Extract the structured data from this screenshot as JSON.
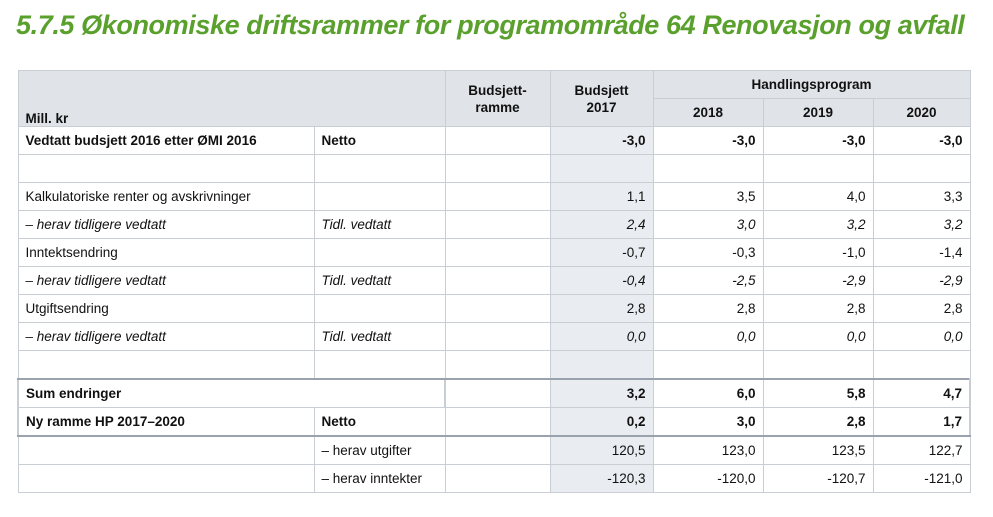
{
  "title": "5.7.5 Økonomiske driftsrammer for programområde 64 Renovasjon og avfall",
  "header": {
    "mill_kr": "Mill. kr",
    "budsjettramme": "Budsjett-\nramme",
    "budsjett_2017": "Budsjett\n2017",
    "handlingsprogram": "Handlingsprogram",
    "years": [
      "2018",
      "2019",
      "2020"
    ]
  },
  "rows": [
    {
      "label": "Vedtatt budsjett 2016 etter ØMI 2016",
      "type": "Netto",
      "ramme": "",
      "v": [
        "-3,0",
        "-3,0",
        "-3,0",
        "-3,0"
      ]
    },
    {
      "label": "",
      "type": "",
      "ramme": "",
      "v": [
        "",
        "",
        "",
        ""
      ]
    },
    {
      "label": "Kalkulatoriske renter og avskrivninger",
      "type": "",
      "ramme": "",
      "v": [
        "1,1",
        "3,5",
        "4,0",
        "3,3"
      ]
    },
    {
      "label": "– herav tidligere vedtatt",
      "type": "Tidl. vedtatt",
      "ramme": "",
      "v": [
        "2,4",
        "3,0",
        "3,2",
        "3,2"
      ]
    },
    {
      "label": "Inntektsendring",
      "type": "",
      "ramme": "",
      "v": [
        "-0,7",
        "-0,3",
        "-1,0",
        "-1,4"
      ]
    },
    {
      "label": "– herav tidligere vedtatt",
      "type": "Tidl. vedtatt",
      "ramme": "",
      "v": [
        "-0,4",
        "-2,5",
        "-2,9",
        "-2,9"
      ]
    },
    {
      "label": "Utgiftsendring",
      "type": "",
      "ramme": "",
      "v": [
        "2,8",
        "2,8",
        "2,8",
        "2,8"
      ]
    },
    {
      "label": "– herav tidligere vedtatt",
      "type": "Tidl. vedtatt",
      "ramme": "",
      "v": [
        "0,0",
        "0,0",
        "0,0",
        "0,0"
      ]
    },
    {
      "label": "",
      "type": "",
      "ramme": "",
      "v": [
        "",
        "",
        "",
        ""
      ]
    },
    {
      "label": "Sum endringer",
      "type": "",
      "ramme": "",
      "v": [
        "3,2",
        "6,0",
        "5,8",
        "4,7"
      ]
    },
    {
      "label": "Ny ramme HP 2017–2020",
      "type": "Netto",
      "ramme": "",
      "v": [
        "0,2",
        "3,0",
        "2,8",
        "1,7"
      ]
    },
    {
      "label": "",
      "type": "– herav utgifter",
      "ramme": "",
      "v": [
        "120,5",
        "123,0",
        "123,5",
        "122,7"
      ]
    },
    {
      "label": "",
      "type": "– herav inntekter",
      "ramme": "",
      "v": [
        "-120,3",
        "-120,0",
        "-120,7",
        "-121,0"
      ]
    }
  ]
}
